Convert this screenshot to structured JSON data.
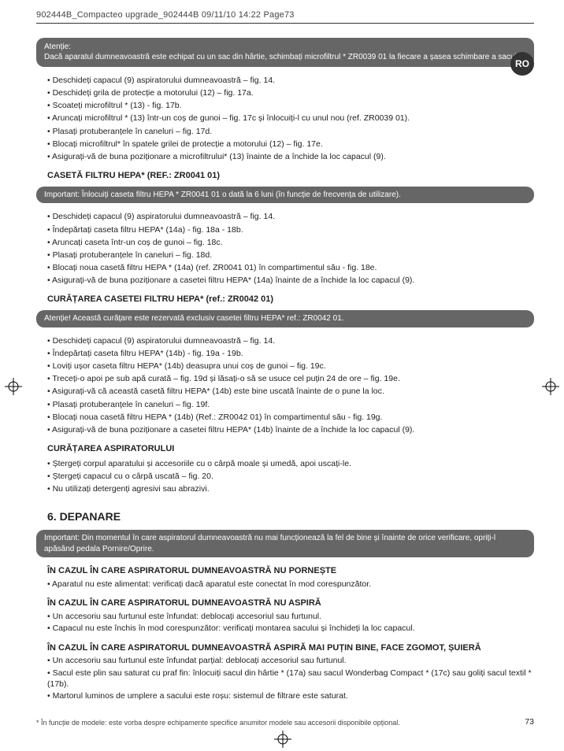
{
  "header": "902444B_Compacteo upgrade_902444B  09/11/10  14:22  Page73",
  "ro_label": "RO",
  "notice1": {
    "lead": "Atenție:",
    "body": "Dacă aparatul dumneavoastră este echipat cu un sac din hârtie, schimbați microfiltrul * ZR0039 01 la fiecare a șasea schimbare a sacului."
  },
  "list1": [
    "Deschideți capacul (9) aspiratorului dumneavoastră – fig. 14.",
    "Deschideți grila de protecție a motorului (12) – fig. 17a.",
    "Scoateți microfiltrul * (13) - fig. 17b.",
    "Aruncați microfiltrul * (13) într-un coș de gunoi – fig. 17c și înlocuiți-l cu unul nou (ref. ZR0039 01).",
    "Plasați protuberanțele în caneluri – fig. 17d.",
    "Blocați microfiltrul* în spatele grilei de protecție a motorului (12) – fig. 17e.",
    "Asigurați-vă de buna poziționare a microfiltrului* (13) înainte de a închide la loc capacul (9)."
  ],
  "title2": "CASETĂ FILTRU HEPA* (REF.: ZR0041 01)",
  "notice2": "Important: Înlocuiți caseta filtru HEPA * ZR0041 01 o dată la 6 luni (în funcție de frecvența de utilizare).",
  "list2": [
    "Deschideți capacul (9) aspiratorului dumneavoastră – fig. 14.",
    "Îndepărtați caseta filtru HEPA* (14a) - fig. 18a - 18b.",
    "Aruncați caseta într-un coș de gunoi – fig. 18c.",
    "Plasați protuberanțele în caneluri – fig. 18d.",
    "Blocați noua casetă filtru HEPA * (14a) (ref. ZR0041 01) în compartimentul său - fig. 18e.",
    "Asigurați-vă de buna poziționare a casetei filtru HEPA* (14a) înainte de a închide la loc capacul (9)."
  ],
  "title3": "CURĂȚAREA CASETEI FILTRU HEPA* (ref.: ZR0042 01)",
  "notice3": "Atenție! Această curățare este rezervată exclusiv casetei filtru HEPA* ref.: ZR0042 01.",
  "list3": [
    "Deschideți capacul (9) aspiratorului dumneavoastră – fig. 14.",
    "Îndepărtați caseta filtru HEPA* (14b) - fig. 19a - 19b.",
    "Loviți ușor caseta filtru HEPA* (14b) deasupra unui coș de gunoi – fig. 19c.",
    "Treceți-o apoi pe sub apă curată – fig. 19d și lăsați-o să se usuce cel puțin 24 de ore – fig. 19e.",
    "Asigurați-vă că această casetă filtru HEPA* (14b) este bine uscată înainte de o pune la loc.",
    "Plasați protuberanțele în caneluri – fig. 19f.",
    "Blocați noua casetă filtru HEPA * (14b) (Ref.: ZR0042 01) în compartimentul său - fig. 19g.",
    "Asigurați-vă de buna poziționare a casetei filtru HEPA* (14b) înainte de a închide la loc capacul (9)."
  ],
  "title4": "CURĂȚAREA ASPIRATORULUI",
  "list4": [
    "Ștergeți corpul aparatului și accesoriile cu o cârpă moale și umedă, apoi uscați-le.",
    "Ștergeți capacul cu o cârpă uscată – fig. 20.",
    "Nu utilizați detergenți agresivi sau abrazivi."
  ],
  "title5": "6. DEPANARE",
  "notice5": "Important: Din momentul în care aspiratorul dumneavoastră nu mai funcționează la fel de bine și înainte de orice verificare, opriți-l apăsând pedala Pornire/Oprire.",
  "sec1_title": "ÎN CAZUL ÎN CARE ASPIRATORUL DUMNEAVOASTRĂ NU PORNEȘTE",
  "sec1_lines": [
    "• Aparatul nu este alimentat: verificați dacă aparatul este conectat în mod corespunzător."
  ],
  "sec2_title": "ÎN CAZUL ÎN CARE ASPIRATORUL DUMNEAVOASTRĂ NU ASPIRĂ",
  "sec2_lines": [
    "• Un accesoriu sau furtunul este înfundat: deblocați accesoriul sau furtunul.",
    "• Capacul nu este închis în mod corespunzător: verificați montarea sacului și închideți la loc capacul."
  ],
  "sec3_title": "ÎN CAZUL ÎN CARE ASPIRATORUL DUMNEAVOASTRĂ ASPIRĂ MAI PUȚIN BINE, FACE ZGOMOT, ȘUIERĂ",
  "sec3_lines": [
    "• Un accesoriu sau furtunul este înfundat parțial: deblocați accesoriul sau furtunul.",
    "• Sacul este plin sau saturat cu praf fin: înlocuiți sacul din hârtie * (17a) sau sacul Wonderbag Compact * (17c) sau goliți sacul textil * (17b).",
    "• Martorul luminos de umplere a sacului este roșu: sistemul de filtrare este saturat."
  ],
  "footnote": "* În funcție de modele: este vorba despre echipamente specifice anumitor modele sau accesorii disponibile opțional.",
  "pagenum": "73"
}
